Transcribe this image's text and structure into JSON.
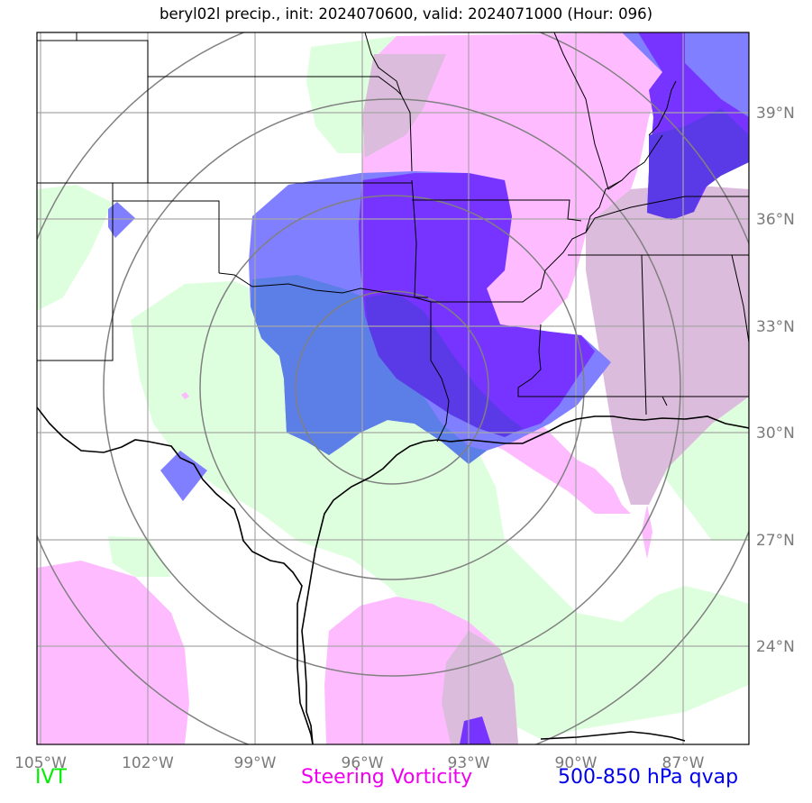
{
  "title": "beryl02l precip., init: 2024070600, valid: 2024071000 (Hour: 096)",
  "lon_ticks": [
    "105°W",
    "102°W",
    "99°W",
    "96°W",
    "93°W",
    "90°W",
    "87°W"
  ],
  "lat_ticks": [
    "39°N",
    "36°N",
    "33°N",
    "30°N",
    "27°N",
    "24°N"
  ],
  "legend": {
    "ivt": "IVT",
    "steering_vorticity": "Steering Vorticity",
    "qvap": "500-850 hPa qvap"
  },
  "colors": {
    "ivt": "#ddffdd",
    "steering_vorticity": "#ffbbff",
    "overlap": "#dcbcdc",
    "qvap_light": "#7f7fff",
    "qvap_mid": "#5b7fe6",
    "qvap_dark": "#7733ff",
    "qvap_darker": "#5a3ae6",
    "grid": "#a6a6a6",
    "range_rings": "#808080",
    "coastline": "#000000"
  }
}
